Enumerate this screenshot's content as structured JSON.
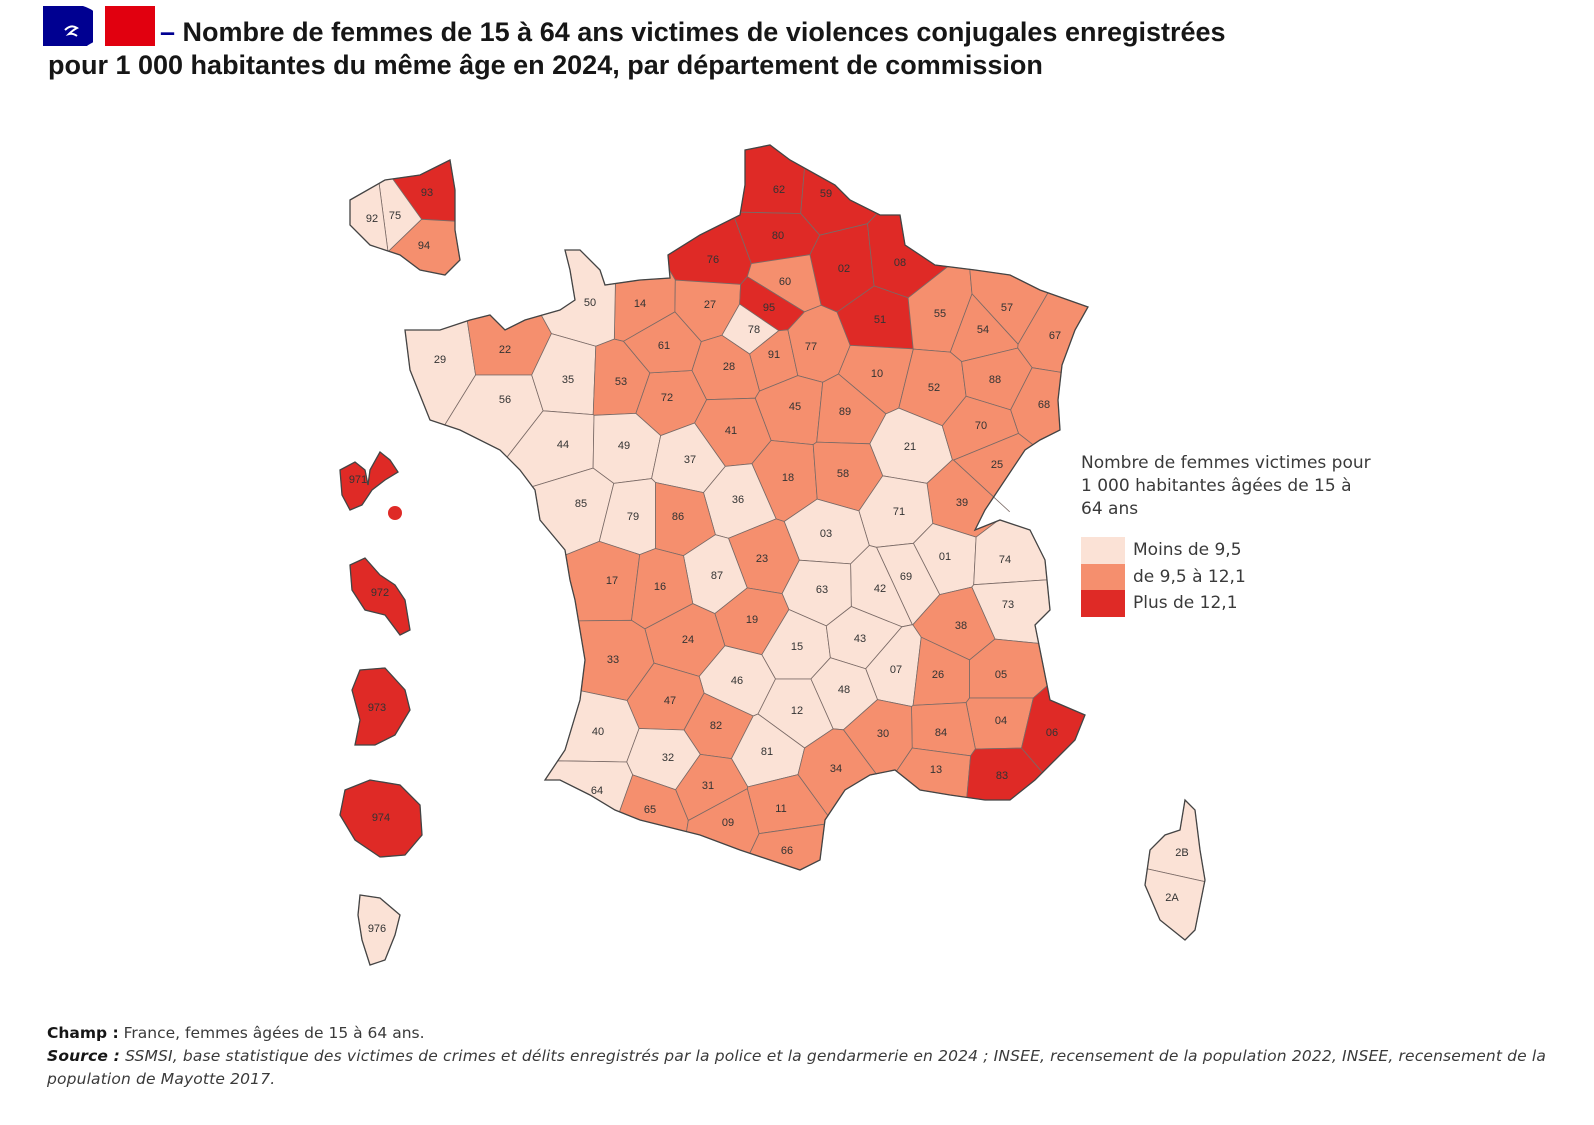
{
  "header": {
    "logo_text": "République Française",
    "title_dash": "–",
    "title_line1": "Nombre de femmes de 15 à 64 ans victimes de violences conjugales enregistrées",
    "title_line2": "pour 1 000 habitantes du même âge en 2024, par département de commission"
  },
  "legend": {
    "title": "Nombre de femmes victimes pour 1 000 habitantes âgées de 15 à 64 ans",
    "items": [
      {
        "key": "low",
        "label": "Moins de 9,5",
        "color": "#fbe2d6"
      },
      {
        "key": "mid",
        "label": "de 9,5 à 12,1",
        "color": "#f58f6e"
      },
      {
        "key": "high",
        "label": "Plus de 12,1",
        "color": "#df2a26"
      }
    ]
  },
  "departments": [
    {
      "code": "62",
      "class": "high"
    },
    {
      "code": "59",
      "class": "high"
    },
    {
      "code": "80",
      "class": "high"
    },
    {
      "code": "76",
      "class": "high"
    },
    {
      "code": "02",
      "class": "high"
    },
    {
      "code": "08",
      "class": "high"
    },
    {
      "code": "60",
      "class": "mid"
    },
    {
      "code": "14",
      "class": "mid"
    },
    {
      "code": "27",
      "class": "mid"
    },
    {
      "code": "50",
      "class": "low"
    },
    {
      "code": "95",
      "class": "high"
    },
    {
      "code": "78",
      "class": "low"
    },
    {
      "code": "91",
      "class": "mid"
    },
    {
      "code": "77",
      "class": "mid"
    },
    {
      "code": "51",
      "class": "high"
    },
    {
      "code": "55",
      "class": "mid"
    },
    {
      "code": "57",
      "class": "mid"
    },
    {
      "code": "54",
      "class": "mid"
    },
    {
      "code": "67",
      "class": "mid"
    },
    {
      "code": "29",
      "class": "low"
    },
    {
      "code": "22",
      "class": "mid"
    },
    {
      "code": "56",
      "class": "low"
    },
    {
      "code": "35",
      "class": "low"
    },
    {
      "code": "53",
      "class": "mid"
    },
    {
      "code": "72",
      "class": "mid"
    },
    {
      "code": "61",
      "class": "mid"
    },
    {
      "code": "28",
      "class": "mid"
    },
    {
      "code": "45",
      "class": "mid"
    },
    {
      "code": "10",
      "class": "mid"
    },
    {
      "code": "52",
      "class": "mid"
    },
    {
      "code": "88",
      "class": "mid"
    },
    {
      "code": "68",
      "class": "mid"
    },
    {
      "code": "89",
      "class": "mid"
    },
    {
      "code": "21",
      "class": "low"
    },
    {
      "code": "70",
      "class": "mid"
    },
    {
      "code": "25",
      "class": "mid"
    },
    {
      "code": "39",
      "class": "mid"
    },
    {
      "code": "41",
      "class": "mid"
    },
    {
      "code": "18",
      "class": "mid"
    },
    {
      "code": "58",
      "class": "mid"
    },
    {
      "code": "71",
      "class": "low"
    },
    {
      "code": "44",
      "class": "low"
    },
    {
      "code": "49",
      "class": "low"
    },
    {
      "code": "37",
      "class": "low"
    },
    {
      "code": "36",
      "class": "low"
    },
    {
      "code": "85",
      "class": "low"
    },
    {
      "code": "79",
      "class": "low"
    },
    {
      "code": "86",
      "class": "mid"
    },
    {
      "code": "03",
      "class": "low"
    },
    {
      "code": "23",
      "class": "mid"
    },
    {
      "code": "87",
      "class": "low"
    },
    {
      "code": "01",
      "class": "low"
    },
    {
      "code": "74",
      "class": "low"
    },
    {
      "code": "69",
      "class": "low"
    },
    {
      "code": "42",
      "class": "low"
    },
    {
      "code": "63",
      "class": "low"
    },
    {
      "code": "73",
      "class": "low"
    },
    {
      "code": "17",
      "class": "mid"
    },
    {
      "code": "16",
      "class": "mid"
    },
    {
      "code": "19",
      "class": "mid"
    },
    {
      "code": "38",
      "class": "mid"
    },
    {
      "code": "15",
      "class": "low"
    },
    {
      "code": "43",
      "class": "low"
    },
    {
      "code": "24",
      "class": "mid"
    },
    {
      "code": "33",
      "class": "mid"
    },
    {
      "code": "07",
      "class": "low"
    },
    {
      "code": "26",
      "class": "mid"
    },
    {
      "code": "05",
      "class": "mid"
    },
    {
      "code": "46",
      "class": "low"
    },
    {
      "code": "48",
      "class": "low"
    },
    {
      "code": "12",
      "class": "low"
    },
    {
      "code": "47",
      "class": "mid"
    },
    {
      "code": "04",
      "class": "mid"
    },
    {
      "code": "06",
      "class": "high"
    },
    {
      "code": "84",
      "class": "mid"
    },
    {
      "code": "30",
      "class": "mid"
    },
    {
      "code": "82",
      "class": "mid"
    },
    {
      "code": "40",
      "class": "low"
    },
    {
      "code": "81",
      "class": "low"
    },
    {
      "code": "32",
      "class": "low"
    },
    {
      "code": "34",
      "class": "mid"
    },
    {
      "code": "13",
      "class": "mid"
    },
    {
      "code": "83",
      "class": "high"
    },
    {
      "code": "31",
      "class": "mid"
    },
    {
      "code": "64",
      "class": "low"
    },
    {
      "code": "65",
      "class": "mid"
    },
    {
      "code": "11",
      "class": "mid"
    },
    {
      "code": "09",
      "class": "mid"
    },
    {
      "code": "66",
      "class": "mid"
    },
    {
      "code": "2B",
      "class": "low"
    },
    {
      "code": "2A",
      "class": "low"
    },
    {
      "code": "93",
      "class": "high"
    },
    {
      "code": "75",
      "class": "low"
    },
    {
      "code": "92",
      "class": "low"
    },
    {
      "code": "94",
      "class": "mid"
    },
    {
      "code": "971",
      "class": "high"
    },
    {
      "code": "972",
      "class": "high"
    },
    {
      "code": "973",
      "class": "high"
    },
    {
      "code": "974",
      "class": "high"
    },
    {
      "code": "976",
      "class": "low"
    }
  ],
  "footer": {
    "champ_label": "Champ :",
    "champ_text": " France, femmes âgées de 15 à 64 ans.",
    "source_label": "Source :",
    "source_text": " SSMSI, base statistique des victimes de crimes et délits enregistrés par la police et la gendarmerie en 2024 ; INSEE, recensement de la population 2022, INSEE, recensement de la population de Mayotte 2017."
  }
}
